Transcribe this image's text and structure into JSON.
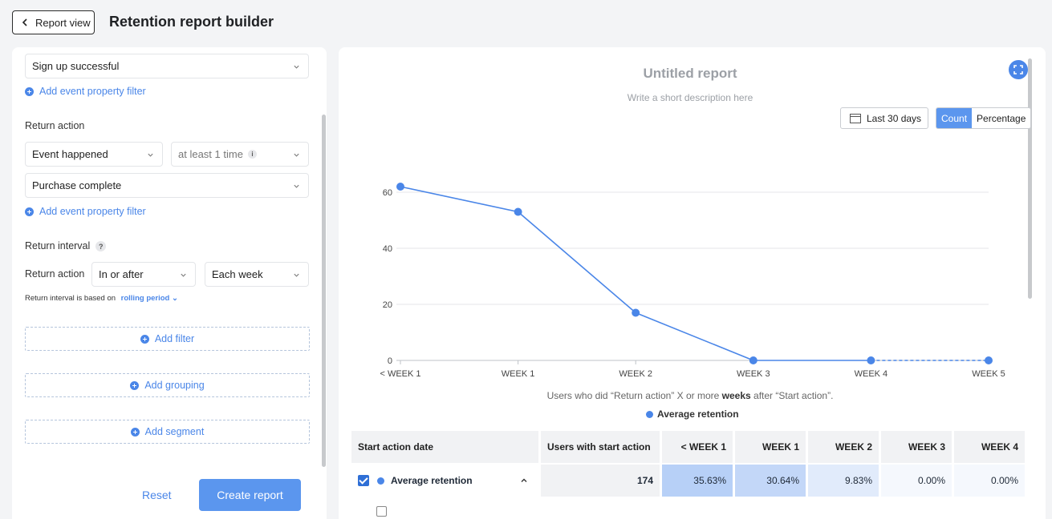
{
  "header": {
    "back_label": "Report view",
    "title": "Retention report builder"
  },
  "left": {
    "start_event_value": "Sign up successful",
    "add_filter_1": "Add event property filter",
    "return_action_label": "Return action",
    "condition_value": "Event happened",
    "frequency_value": "at least 1 time",
    "return_event_value": "Purchase complete",
    "add_filter_2": "Add event property filter",
    "interval_label": "Return interval",
    "interval_help": "?",
    "interval_row_label": "Return action",
    "interval_mode_value": "In or after",
    "interval_period_value": "Each week",
    "basis_text": "Return interval is based on",
    "basis_link": "rolling period",
    "add_filter": "Add filter",
    "add_grouping": "Add grouping",
    "add_segment": "Add segment",
    "reset_label": "Reset",
    "create_label": "Create report"
  },
  "right": {
    "report_title": "Untitled report",
    "report_desc": "Write a short description here",
    "date_range": "Last 30 days",
    "toggle_count": "Count",
    "toggle_percentage": "Percentage",
    "caption_pre": "Users who did “Return action” X or more ",
    "caption_bold": "weeks",
    "caption_post": " after “Start action”.",
    "legend_label": "Average retention"
  },
  "chart_data": {
    "type": "line",
    "categories": [
      "< WEEK 1",
      "WEEK 1",
      "WEEK 2",
      "WEEK 3",
      "WEEK 4",
      "WEEK 5"
    ],
    "series": [
      {
        "name": "Average retention",
        "values": [
          62,
          53,
          17,
          0,
          0,
          0
        ]
      }
    ],
    "y_ticks": [
      0,
      20,
      40,
      60
    ],
    "ylim": [
      0,
      62
    ],
    "grid": true,
    "dashed_last_segment": true,
    "color": "#4a86e8"
  },
  "table": {
    "headers": [
      "Start action date",
      "Users with start action",
      "< WEEK 1",
      "WEEK 1",
      "WEEK 2",
      "WEEK 3",
      "WEEK 4"
    ],
    "avg_row": {
      "label": "Average retention",
      "users": "174",
      "values": [
        "35.63%",
        "30.64%",
        "9.83%",
        "0.00%",
        "0.00%"
      ]
    }
  },
  "colors": {
    "accent": "#4a86e8",
    "button": "#5b96ee",
    "heat_high": "#b7d0f7",
    "heat_mid": "#c3d7f8",
    "heat_low": "#e1ebfb",
    "heat_zero": "#f5f8fd"
  }
}
